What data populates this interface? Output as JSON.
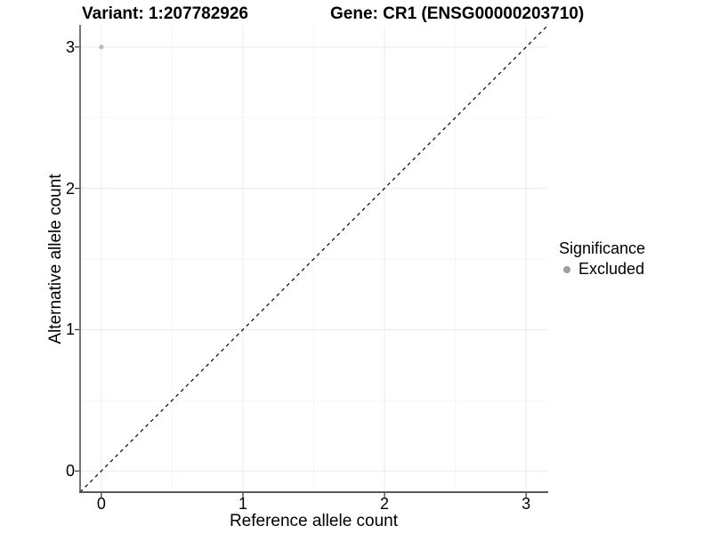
{
  "chart_data": {
    "type": "scatter",
    "titles": {
      "left": "Variant: 1:207782926",
      "right": "Gene: CR1 (ENSG00000203710)"
    },
    "xlabel": "Reference allele count",
    "ylabel": "Alternative allele count",
    "xlim": [
      -0.15,
      3.15
    ],
    "ylim": [
      -0.15,
      3.15
    ],
    "xticks": [
      0,
      1,
      2,
      3
    ],
    "yticks": [
      0,
      1,
      2,
      3
    ],
    "grid": "major+minor",
    "series": [
      {
        "name": "Excluded",
        "color": "#b9b9b9",
        "marker": "circle",
        "points": [
          {
            "x": 0,
            "y": 3
          }
        ]
      }
    ],
    "reference_line": {
      "type": "identity y=x",
      "style": "dashed",
      "color": "#000000"
    },
    "legend": {
      "title": "Significance",
      "position": "right",
      "entries": [
        {
          "label": "Excluded",
          "color": "#9f9f9f"
        }
      ]
    }
  },
  "colors": {
    "background": "#ffffff",
    "grid_major": "#ebebeb",
    "grid_minor": "#f5f5f5",
    "axis_x": "#595959",
    "axis_y": "#1a1a1a",
    "tick": "#333333",
    "text": "#000000"
  }
}
